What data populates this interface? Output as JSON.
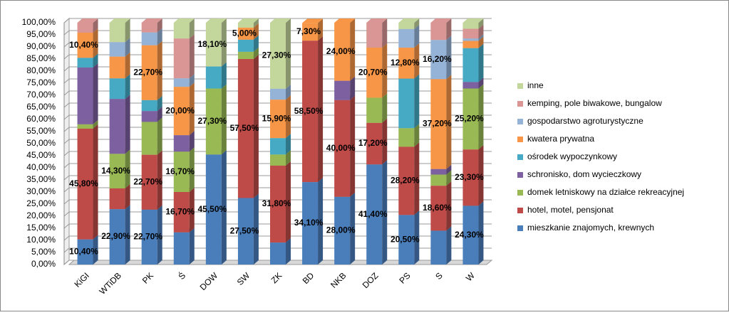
{
  "chart_data": {
    "type": "stacked-bar-3d",
    "categories": [
      "KiGI",
      "WTiDB",
      "PK",
      "Ś",
      "DOW",
      "SW",
      "ZK",
      "BD",
      "NKB",
      "DOZ",
      "PS",
      "S",
      "W"
    ],
    "series": [
      {
        "name": "mieszkanie znajomych, krewnych",
        "color": "#4a7ebb",
        "values": [
          10.4,
          22.9,
          22.7,
          13.3,
          45.5,
          27.5,
          9.1,
          34.1,
          28.0,
          41.4,
          20.5,
          14.0,
          24.3
        ],
        "value_labels": [
          "10,40%",
          "22,90%",
          "22,70%",
          null,
          "45,50%",
          "27,50%",
          null,
          "34,10%",
          "28,00%",
          "41,40%",
          "20,50%",
          null,
          "24,30%"
        ]
      },
      {
        "name": "hotel, motel, pensjonat",
        "color": "#be4b48",
        "values": [
          45.8,
          8.6,
          22.7,
          16.7,
          0,
          57.5,
          31.8,
          58.5,
          40.0,
          17.2,
          28.2,
          18.6,
          23.3
        ],
        "value_labels": [
          "45,80%",
          null,
          "22,70%",
          "16,70%",
          null,
          "57,50%",
          "31,80%",
          "58,50%",
          "40,00%",
          "17,20%",
          "28,20%",
          "18,60%",
          "23,30%"
        ]
      },
      {
        "name": "domek letniskowy na działce rekreacyjnej",
        "color": "#98b954",
        "values": [
          1.8,
          14.3,
          13.6,
          16.7,
          27.3,
          3.0,
          4.6,
          0,
          0,
          10.4,
          7.7,
          4.6,
          25.2
        ],
        "value_labels": [
          null,
          "14,30%",
          null,
          "16,70%",
          "27,30%",
          null,
          null,
          null,
          null,
          null,
          null,
          null,
          "25,20%"
        ]
      },
      {
        "name": "schronisko, dom wycieczkowy",
        "color": "#7d60a0",
        "values": [
          23.5,
          22.7,
          4.5,
          6.8,
          0,
          0,
          0,
          0,
          8.0,
          0,
          0,
          2.3,
          2.7
        ]
      },
      {
        "name": "ośrodek wypoczynkowy",
        "color": "#46aac5",
        "values": [
          4.0,
          8.5,
          4.5,
          0,
          9.1,
          5.0,
          6.8,
          0,
          0,
          0,
          20.5,
          0,
          14.0
        ]
      },
      {
        "name": "kwatera prywatna",
        "color": "#f79646",
        "values": [
          10.4,
          9.0,
          22.7,
          20.0,
          0,
          5.0,
          15.9,
          7.3,
          24.0,
          20.7,
          12.8,
          37.2,
          3.0
        ],
        "value_labels": [
          "10,40%",
          null,
          "22,70%",
          "20,00%",
          null,
          "5,00%",
          "15,90%",
          "7,30%",
          "24,00%",
          "20,70%",
          "12,80%",
          "37,20%",
          null
        ]
      },
      {
        "name": "gospodarstwo agroturystyczne",
        "color": "#95b3d7",
        "values": [
          0,
          6.0,
          5.3,
          3.5,
          0,
          0,
          4.5,
          0,
          0,
          0,
          7.7,
          16.2,
          1.0
        ],
        "value_labels": [
          null,
          null,
          null,
          null,
          null,
          null,
          null,
          null,
          null,
          null,
          null,
          "16,20%",
          null
        ]
      },
      {
        "name": "kemping, pole biwakowe, bungalow",
        "color": "#d99694",
        "values": [
          4.1,
          0,
          4.0,
          16.5,
          0,
          0,
          0,
          0,
          0,
          10.3,
          0,
          7.1,
          4.0
        ]
      },
      {
        "name": "inne",
        "color": "#c3d69b",
        "values": [
          0,
          8.0,
          0,
          6.5,
          18.1,
          2.0,
          27.3,
          0,
          0,
          0,
          2.6,
          0,
          2.5
        ],
        "value_labels": [
          null,
          null,
          null,
          null,
          "18,10%",
          null,
          "27,30%",
          null,
          null,
          null,
          null,
          null,
          null
        ]
      }
    ],
    "ylim": [
      0,
      100
    ],
    "yticks": [
      {
        "value": 0,
        "label": "0,00%"
      },
      {
        "value": 5,
        "label": "5,00%"
      },
      {
        "value": 10,
        "label": "10,00%"
      },
      {
        "value": 15,
        "label": "15,00%"
      },
      {
        "value": 20,
        "label": "20,00%"
      },
      {
        "value": 25,
        "label": "25,00%"
      },
      {
        "value": 30,
        "label": "30,00%"
      },
      {
        "value": 35,
        "label": "35,00%"
      },
      {
        "value": 40,
        "label": "40,00%"
      },
      {
        "value": 45,
        "label": "45,00%"
      },
      {
        "value": 50,
        "label": "50,00%"
      },
      {
        "value": 55,
        "label": "55,00%"
      },
      {
        "value": 60,
        "label": "60,00%"
      },
      {
        "value": 65,
        "label": "65,00%"
      },
      {
        "value": 70,
        "label": "70,00%"
      },
      {
        "value": 75,
        "label": "75,00%"
      },
      {
        "value": 80,
        "label": "80,00%"
      },
      {
        "value": 85,
        "label": "85,00%"
      },
      {
        "value": 90,
        "label": "90,00%"
      },
      {
        "value": 95,
        "label": "95,00%"
      },
      {
        "value": 100,
        "label": "100,00%"
      }
    ],
    "grid": true,
    "legend": "right"
  }
}
